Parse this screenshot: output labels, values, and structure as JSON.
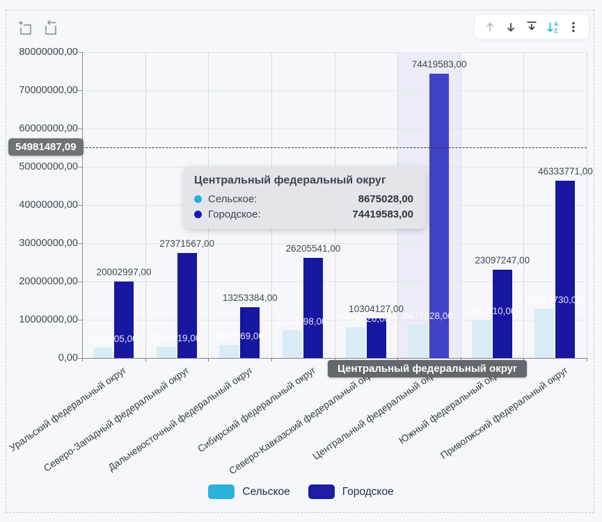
{
  "colors": {
    "background": "#f6f7fb",
    "rural_dimmed": "#d9ecf5",
    "rural_accent": "#29b3da",
    "urban": "#1717a0",
    "urban_highlight": "#4242c8",
    "highlight_band": "#ebecf8"
  },
  "tools_left": {
    "zoom_select_label": "zoom-area-select",
    "undo_zoom_label": "undo-zoom"
  },
  "toolbar_right": {
    "icons": [
      "move-up",
      "move-down",
      "download",
      "sort-ascending",
      "more-menu"
    ]
  },
  "chart_data": {
    "type": "bar",
    "title": "",
    "categories": [
      "Уральский федеральный округ",
      "Северо-Западный федеральный округ",
      "Дальневосточный федеральный округ",
      "Сибирский федеральный округ",
      "Северо-Кавказский федеральный округ",
      "Центральный федеральный округ",
      "Южный федеральный округ",
      "Приволжский федеральный округ"
    ],
    "series": [
      {
        "name": "Сельское",
        "values": [
          2815105,
          2908619,
          3408069,
          7182298,
          7974626,
          8675028,
          9981210,
          12884730
        ],
        "labels": [
          "2815105,00",
          "2908619,00",
          "3408069,00",
          "7182298,00",
          "7974626,00",
          "8675028,00",
          "9981210,00",
          "12884730,00"
        ]
      },
      {
        "name": "Городское",
        "values": [
          20002997,
          27371567,
          13253384,
          26205541,
          10304127,
          74419583,
          23097247,
          46333771
        ],
        "labels": [
          "20002997,00",
          "27371567,00",
          "13253384,00",
          "26205541,00",
          "10304127,00",
          "74419583,00",
          "23097247,00",
          "46333771,00"
        ]
      }
    ],
    "highlighted_index": 5,
    "highlighted_category": "Центральный федеральный округ",
    "y_axis": {
      "min": 0,
      "max": 80000000,
      "step": 10000000,
      "tick_labels": [
        "80000000,00",
        "70000000,00",
        "60000000,00",
        "50000000,00",
        "40000000,00",
        "30000000,00",
        "20000000,00",
        "10000000,00",
        "0,00"
      ]
    },
    "threshold": {
      "value": 54981487.09,
      "label": "54981487,09"
    },
    "legend_position": "bottom",
    "grid": true
  },
  "tooltip": {
    "title": "Центральный федеральный округ",
    "rows": [
      {
        "name": "Сельское:",
        "value": "8675028,00",
        "dot_color": "#23b2dd"
      },
      {
        "name": "Городское:",
        "value": "74419583,00",
        "dot_color": "#1818b0"
      }
    ]
  },
  "x_highlight_chip": {
    "label": "Центральный федеральный округ"
  },
  "legend": {
    "items": [
      {
        "label": "Сельское",
        "color": "#29b3da"
      },
      {
        "label": "Городское",
        "color": "#1d1da1"
      }
    ]
  }
}
